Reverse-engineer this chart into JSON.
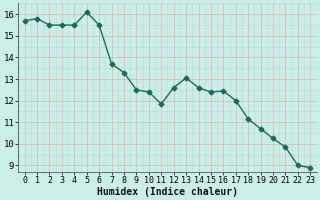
{
  "x": [
    0,
    1,
    2,
    3,
    4,
    5,
    6,
    7,
    8,
    9,
    10,
    11,
    12,
    13,
    14,
    15,
    16,
    17,
    18,
    19,
    20,
    21,
    22,
    23
  ],
  "y": [
    15.7,
    15.8,
    15.5,
    15.5,
    15.5,
    16.1,
    15.5,
    13.7,
    13.3,
    12.5,
    12.4,
    11.85,
    12.6,
    13.05,
    12.6,
    12.4,
    12.45,
    12.0,
    11.15,
    10.7,
    10.25,
    9.85,
    9.0,
    8.9
  ],
  "xlabel": "Humidex (Indice chaleur)",
  "ylim": [
    8.7,
    16.5
  ],
  "xlim": [
    -0.5,
    23.5
  ],
  "line_color": "#1a6b5e",
  "marker": "D",
  "marker_size": 2.5,
  "bg_color": "#cceee8",
  "grid_color_major": "#ddbbbb",
  "grid_color_minor": "#bbddcc",
  "yticks": [
    9,
    10,
    11,
    12,
    13,
    14,
    15,
    16
  ],
  "xticks": [
    0,
    1,
    2,
    3,
    4,
    5,
    6,
    7,
    8,
    9,
    10,
    11,
    12,
    13,
    14,
    15,
    16,
    17,
    18,
    19,
    20,
    21,
    22,
    23
  ],
  "xlabel_fontsize": 7,
  "tick_fontsize": 6
}
